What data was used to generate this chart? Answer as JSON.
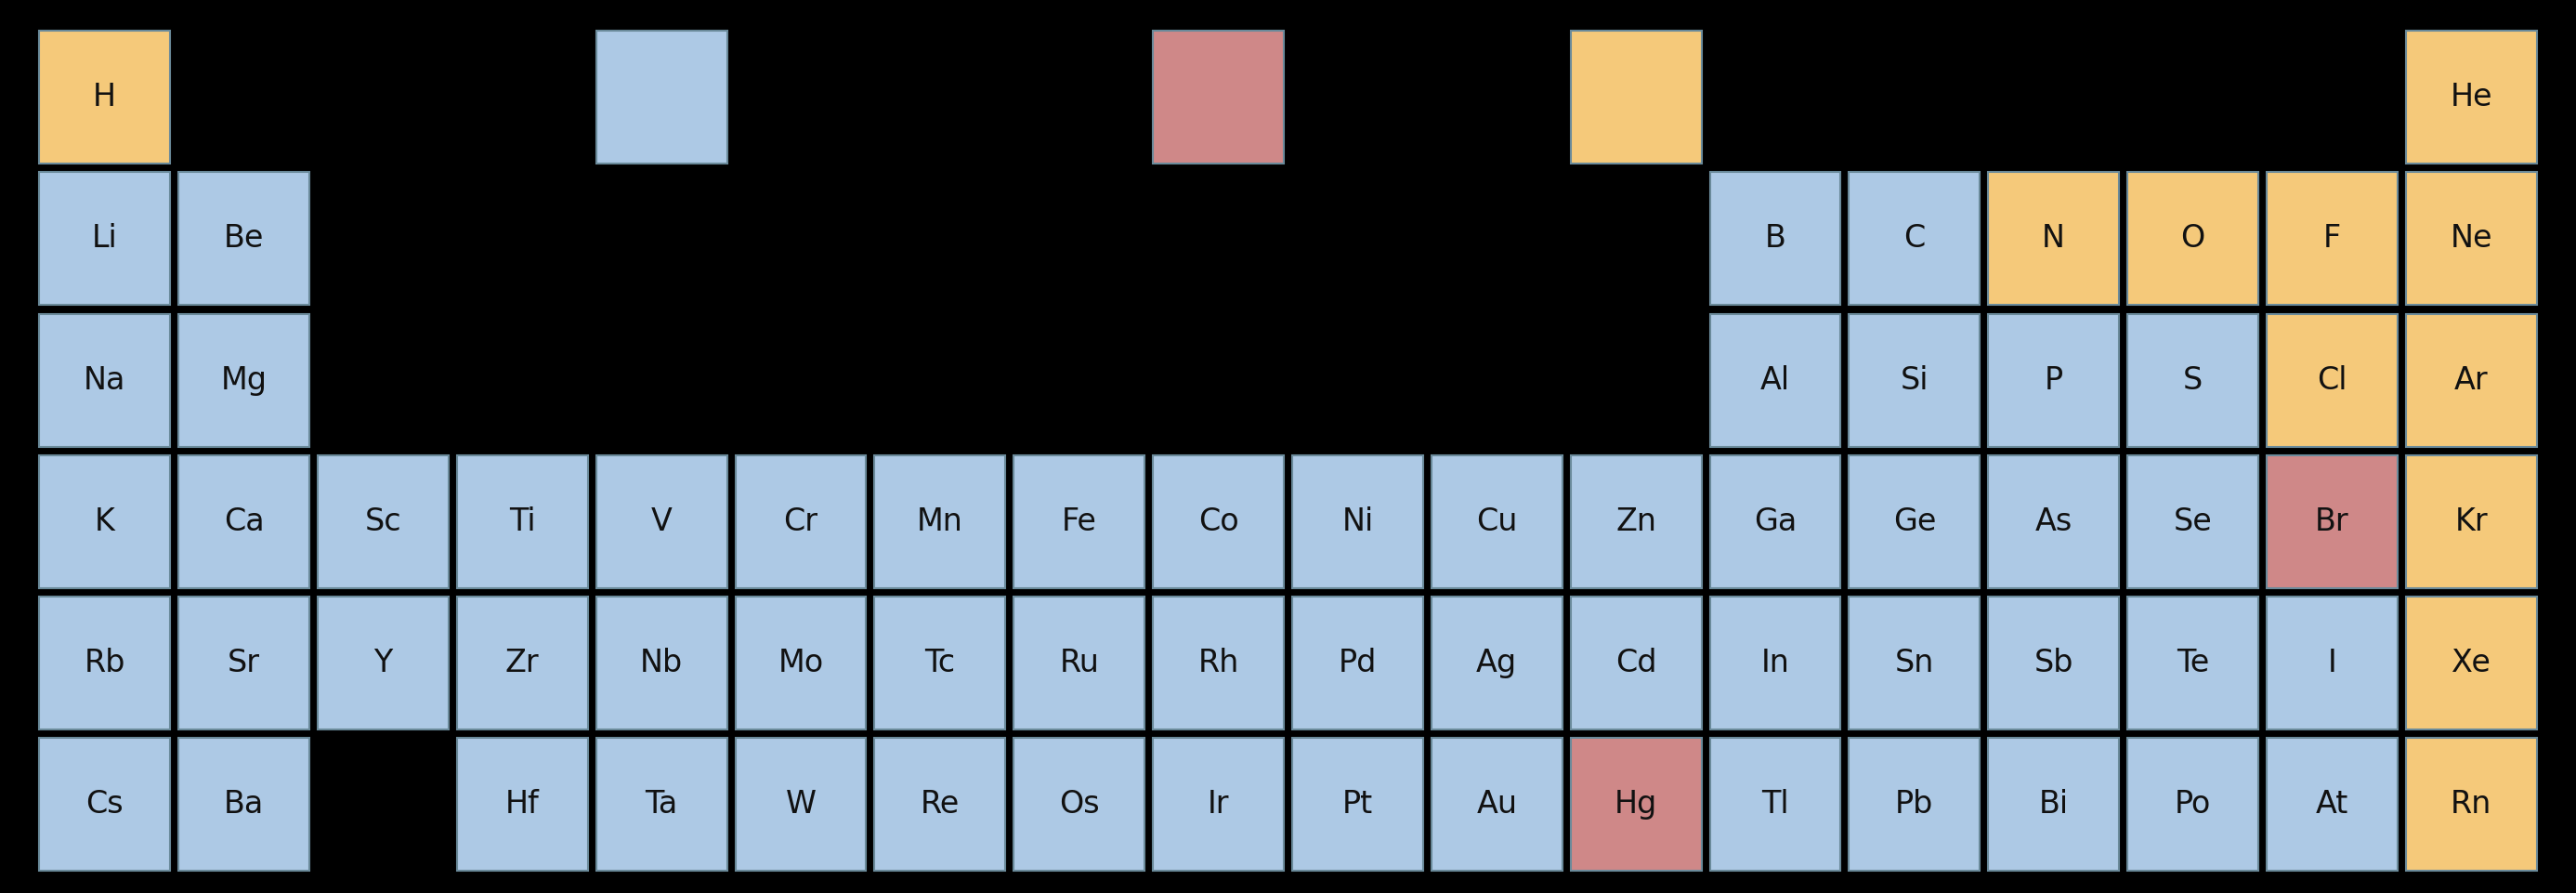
{
  "background": "#000000",
  "colors": {
    "gas": "#F5C97A",
    "solid": "#ADC9E5",
    "liquid": "#CF8888"
  },
  "elements": [
    {
      "symbol": "H",
      "row": 0,
      "col": 0,
      "color": "gas"
    },
    {
      "symbol": "",
      "row": 0,
      "col": 4,
      "color": "solid"
    },
    {
      "symbol": "",
      "row": 0,
      "col": 8,
      "color": "liquid"
    },
    {
      "symbol": "",
      "row": 0,
      "col": 11,
      "color": "gas"
    },
    {
      "symbol": "He",
      "row": 0,
      "col": 17,
      "color": "gas"
    },
    {
      "symbol": "Li",
      "row": 1,
      "col": 0,
      "color": "solid"
    },
    {
      "symbol": "Be",
      "row": 1,
      "col": 1,
      "color": "solid"
    },
    {
      "symbol": "B",
      "row": 1,
      "col": 12,
      "color": "solid"
    },
    {
      "symbol": "C",
      "row": 1,
      "col": 13,
      "color": "solid"
    },
    {
      "symbol": "N",
      "row": 1,
      "col": 14,
      "color": "gas"
    },
    {
      "symbol": "O",
      "row": 1,
      "col": 15,
      "color": "gas"
    },
    {
      "symbol": "F",
      "row": 1,
      "col": 16,
      "color": "gas"
    },
    {
      "symbol": "Ne",
      "row": 1,
      "col": 17,
      "color": "gas"
    },
    {
      "symbol": "Na",
      "row": 2,
      "col": 0,
      "color": "solid"
    },
    {
      "symbol": "Mg",
      "row": 2,
      "col": 1,
      "color": "solid"
    },
    {
      "symbol": "Al",
      "row": 2,
      "col": 12,
      "color": "solid"
    },
    {
      "symbol": "Si",
      "row": 2,
      "col": 13,
      "color": "solid"
    },
    {
      "symbol": "P",
      "row": 2,
      "col": 14,
      "color": "solid"
    },
    {
      "symbol": "S",
      "row": 2,
      "col": 15,
      "color": "solid"
    },
    {
      "symbol": "Cl",
      "row": 2,
      "col": 16,
      "color": "gas"
    },
    {
      "symbol": "Ar",
      "row": 2,
      "col": 17,
      "color": "gas"
    },
    {
      "symbol": "K",
      "row": 3,
      "col": 0,
      "color": "solid"
    },
    {
      "symbol": "Ca",
      "row": 3,
      "col": 1,
      "color": "solid"
    },
    {
      "symbol": "Sc",
      "row": 3,
      "col": 2,
      "color": "solid"
    },
    {
      "symbol": "Ti",
      "row": 3,
      "col": 3,
      "color": "solid"
    },
    {
      "symbol": "V",
      "row": 3,
      "col": 4,
      "color": "solid"
    },
    {
      "symbol": "Cr",
      "row": 3,
      "col": 5,
      "color": "solid"
    },
    {
      "symbol": "Mn",
      "row": 3,
      "col": 6,
      "color": "solid"
    },
    {
      "symbol": "Fe",
      "row": 3,
      "col": 7,
      "color": "solid"
    },
    {
      "symbol": "Co",
      "row": 3,
      "col": 8,
      "color": "solid"
    },
    {
      "symbol": "Ni",
      "row": 3,
      "col": 9,
      "color": "solid"
    },
    {
      "symbol": "Cu",
      "row": 3,
      "col": 10,
      "color": "solid"
    },
    {
      "symbol": "Zn",
      "row": 3,
      "col": 11,
      "color": "solid"
    },
    {
      "symbol": "Ga",
      "row": 3,
      "col": 12,
      "color": "solid"
    },
    {
      "symbol": "Ge",
      "row": 3,
      "col": 13,
      "color": "solid"
    },
    {
      "symbol": "As",
      "row": 3,
      "col": 14,
      "color": "solid"
    },
    {
      "symbol": "Se",
      "row": 3,
      "col": 15,
      "color": "solid"
    },
    {
      "symbol": "Br",
      "row": 3,
      "col": 16,
      "color": "liquid"
    },
    {
      "symbol": "Kr",
      "row": 3,
      "col": 17,
      "color": "gas"
    },
    {
      "symbol": "Rb",
      "row": 4,
      "col": 0,
      "color": "solid"
    },
    {
      "symbol": "Sr",
      "row": 4,
      "col": 1,
      "color": "solid"
    },
    {
      "symbol": "Y",
      "row": 4,
      "col": 2,
      "color": "solid"
    },
    {
      "symbol": "Zr",
      "row": 4,
      "col": 3,
      "color": "solid"
    },
    {
      "symbol": "Nb",
      "row": 4,
      "col": 4,
      "color": "solid"
    },
    {
      "symbol": "Mo",
      "row": 4,
      "col": 5,
      "color": "solid"
    },
    {
      "symbol": "Tc",
      "row": 4,
      "col": 6,
      "color": "solid"
    },
    {
      "symbol": "Ru",
      "row": 4,
      "col": 7,
      "color": "solid"
    },
    {
      "symbol": "Rh",
      "row": 4,
      "col": 8,
      "color": "solid"
    },
    {
      "symbol": "Pd",
      "row": 4,
      "col": 9,
      "color": "solid"
    },
    {
      "symbol": "Ag",
      "row": 4,
      "col": 10,
      "color": "solid"
    },
    {
      "symbol": "Cd",
      "row": 4,
      "col": 11,
      "color": "solid"
    },
    {
      "symbol": "In",
      "row": 4,
      "col": 12,
      "color": "solid"
    },
    {
      "symbol": "Sn",
      "row": 4,
      "col": 13,
      "color": "solid"
    },
    {
      "symbol": "Sb",
      "row": 4,
      "col": 14,
      "color": "solid"
    },
    {
      "symbol": "Te",
      "row": 4,
      "col": 15,
      "color": "solid"
    },
    {
      "symbol": "I",
      "row": 4,
      "col": 16,
      "color": "solid"
    },
    {
      "symbol": "Xe",
      "row": 4,
      "col": 17,
      "color": "gas"
    },
    {
      "symbol": "Cs",
      "row": 5,
      "col": 0,
      "color": "solid"
    },
    {
      "symbol": "Ba",
      "row": 5,
      "col": 1,
      "color": "solid"
    },
    {
      "symbol": "Hf",
      "row": 5,
      "col": 3,
      "color": "solid"
    },
    {
      "symbol": "Ta",
      "row": 5,
      "col": 4,
      "color": "solid"
    },
    {
      "symbol": "W",
      "row": 5,
      "col": 5,
      "color": "solid"
    },
    {
      "symbol": "Re",
      "row": 5,
      "col": 6,
      "color": "solid"
    },
    {
      "symbol": "Os",
      "row": 5,
      "col": 7,
      "color": "solid"
    },
    {
      "symbol": "Ir",
      "row": 5,
      "col": 8,
      "color": "solid"
    },
    {
      "symbol": "Pt",
      "row": 5,
      "col": 9,
      "color": "solid"
    },
    {
      "symbol": "Au",
      "row": 5,
      "col": 10,
      "color": "solid"
    },
    {
      "symbol": "Hg",
      "row": 5,
      "col": 11,
      "color": "liquid"
    },
    {
      "symbol": "Tl",
      "row": 5,
      "col": 12,
      "color": "solid"
    },
    {
      "symbol": "Pb",
      "row": 5,
      "col": 13,
      "color": "solid"
    },
    {
      "symbol": "Bi",
      "row": 5,
      "col": 14,
      "color": "solid"
    },
    {
      "symbol": "Po",
      "row": 5,
      "col": 15,
      "color": "solid"
    },
    {
      "symbol": "At",
      "row": 5,
      "col": 16,
      "color": "solid"
    },
    {
      "symbol": "Rn",
      "row": 5,
      "col": 17,
      "color": "gas"
    }
  ],
  "n_rows": 6,
  "n_cols": 18,
  "font_size": 24,
  "text_color": "#111111",
  "edge_color": "#6a8a9a",
  "line_width": 1.5
}
